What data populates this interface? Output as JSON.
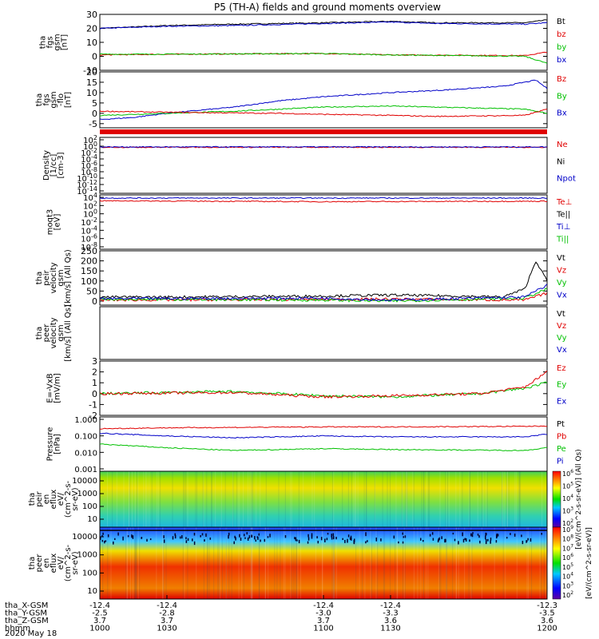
{
  "title": "P5 (TH-A) fields and ground moments overview",
  "date_label": "2020 May 18",
  "colors": {
    "black": "#000000",
    "red": "#e00000",
    "green": "#00c000",
    "blue": "#0000c8"
  },
  "chart_data": [
    {
      "type": "line",
      "name": "fgs",
      "ylabel": [
        "tha",
        "fgs",
        "gsm",
        "[nT]"
      ],
      "ylim": [
        -10,
        30
      ],
      "yticks": [
        -10,
        0,
        10,
        20,
        30
      ],
      "legend": [
        {
          "label": "Bt",
          "color": "black"
        },
        {
          "label": "bz",
          "color": "red"
        },
        {
          "label": "by",
          "color": "green"
        },
        {
          "label": "bx",
          "color": "blue"
        }
      ],
      "series": [
        {
          "name": "Bt",
          "color": "black",
          "x": [
            1000,
            1030,
            1060,
            1100,
            1130,
            1150,
            1190,
            1200
          ],
          "y": [
            20,
            22,
            23,
            24,
            25,
            24,
            24,
            26
          ]
        },
        {
          "name": "Bt-blue",
          "color": "blue",
          "x": [
            1000,
            1030,
            1060,
            1100,
            1130,
            1150,
            1190,
            1200
          ],
          "y": [
            20,
            21.5,
            22,
            23.5,
            24.5,
            23.5,
            23,
            24
          ]
        },
        {
          "name": "bz",
          "color": "red",
          "x": [
            1000,
            1030,
            1100,
            1130,
            1190,
            1200
          ],
          "y": [
            1,
            1.5,
            2,
            1,
            0.5,
            3
          ]
        },
        {
          "name": "by",
          "color": "green",
          "x": [
            1000,
            1030,
            1100,
            1130,
            1190,
            1200
          ],
          "y": [
            1.5,
            1.5,
            2,
            1,
            0,
            -5
          ]
        }
      ]
    },
    {
      "type": "line",
      "name": "fgs-gsm",
      "ylabel": [
        "tha",
        "fgs",
        "gsm",
        "-flo",
        "[nT]"
      ],
      "ylim": [
        -7,
        20
      ],
      "yticks": [
        -5,
        0,
        5,
        10,
        15,
        20
      ],
      "legend": [
        {
          "label": "Bz",
          "color": "red"
        },
        {
          "label": "By",
          "color": "green"
        },
        {
          "label": "Bx",
          "color": "blue"
        }
      ],
      "series": [
        {
          "name": "Bx",
          "color": "blue",
          "x": [
            1000,
            1015,
            1030,
            1060,
            1080,
            1100,
            1130,
            1150,
            1180,
            1195,
            1200
          ],
          "y": [
            -3,
            -2,
            0,
            3,
            6,
            8,
            10,
            11,
            13,
            16,
            12
          ]
        },
        {
          "name": "By",
          "color": "green",
          "x": [
            1000,
            1030,
            1060,
            1080,
            1100,
            1130,
            1150,
            1190,
            1200
          ],
          "y": [
            -1,
            0,
            1,
            2,
            3,
            3.5,
            3,
            2,
            0
          ]
        },
        {
          "name": "Bz",
          "color": "red",
          "x": [
            1000,
            1030,
            1080,
            1100,
            1130,
            1150,
            1190,
            1200
          ],
          "y": [
            1,
            0.5,
            0,
            -0.5,
            -1,
            -1.5,
            -1,
            2
          ]
        }
      ]
    },
    {
      "type": "line",
      "name": "density",
      "ylabel": [
        "Density",
        "[1/cc]",
        "[cm-3]"
      ],
      "log": true,
      "ylim": [
        -14,
        3
      ],
      "yticks_labels": [
        "10^2",
        "10^0",
        "10^-2",
        "10^-4",
        "10^-6",
        "10^-8",
        "10^-10",
        "10^-12",
        "10^-14"
      ],
      "legend": [
        {
          "label": "Ne",
          "color": "red"
        },
        {
          "label": "Ni",
          "color": "black"
        },
        {
          "label": "Npot",
          "color": "blue"
        }
      ],
      "series": [
        {
          "name": "Ne",
          "color": "red",
          "x": [
            1000,
            1200
          ],
          "y": [
            0,
            0
          ]
        },
        {
          "name": "Npot",
          "color": "blue",
          "x": [
            1000,
            1200
          ],
          "y": [
            0.1,
            0.1
          ]
        }
      ]
    },
    {
      "type": "line",
      "name": "temperature",
      "ylabel": [
        "moqt3",
        "[eV]"
      ],
      "log": true,
      "ylim": [
        -8,
        4
      ],
      "yticks_labels": [
        "10^4",
        "10^2",
        "10^0",
        "10^-2",
        "10^-4",
        "10^-6",
        "10^-8"
      ],
      "legend": [
        {
          "label": "Te⊥",
          "color": "red"
        },
        {
          "label": "Te||",
          "color": "black"
        },
        {
          "label": "Ti⊥",
          "color": "blue"
        },
        {
          "label": "Ti||",
          "color": "green"
        }
      ],
      "series": [
        {
          "name": "Ti",
          "color": "blue",
          "x": [
            1000,
            1200
          ],
          "y": [
            3.3,
            3.3
          ]
        },
        {
          "name": "Te",
          "color": "red",
          "x": [
            1000,
            1100,
            1200
          ],
          "y": [
            2.7,
            2.5,
            2.6
          ]
        }
      ]
    },
    {
      "type": "line",
      "name": "peir-velocity",
      "ylabel": [
        "tha",
        "peir",
        "velocity",
        "gsm",
        "[km/s] (All Qs)"
      ],
      "ylim": [
        -20,
        250
      ],
      "yticks": [
        0,
        50,
        100,
        150,
        200,
        250
      ],
      "legend": [
        {
          "label": "Vt",
          "color": "black"
        },
        {
          "label": "Vz",
          "color": "red"
        },
        {
          "label": "Vy",
          "color": "green"
        },
        {
          "label": "Vx",
          "color": "blue"
        }
      ],
      "series": [
        {
          "name": "Vt",
          "color": "black",
          "x": [
            1000,
            1030,
            1100,
            1130,
            1160,
            1180,
            1190,
            1195,
            1200
          ],
          "y": [
            20,
            20,
            25,
            30,
            25,
            20,
            60,
            200,
            100
          ]
        },
        {
          "name": "Vz",
          "color": "red",
          "x": [
            1000,
            1100,
            1130,
            1190,
            1200
          ],
          "y": [
            5,
            8,
            10,
            5,
            40
          ]
        },
        {
          "name": "Vy",
          "color": "green",
          "x": [
            1000,
            1100,
            1130,
            1190,
            1200
          ],
          "y": [
            10,
            5,
            0,
            15,
            60
          ]
        },
        {
          "name": "Vx",
          "color": "blue",
          "x": [
            1000,
            1100,
            1130,
            1190,
            1200
          ],
          "y": [
            12,
            15,
            5,
            20,
            80
          ]
        }
      ]
    },
    {
      "type": "line",
      "name": "peer-velocity",
      "ylabel": [
        "tha",
        "peer",
        "velocity",
        "gsm",
        "[km/s] (All Qs)"
      ],
      "legend": [
        {
          "label": "Vt",
          "color": "black"
        },
        {
          "label": "Vz",
          "color": "red"
        },
        {
          "label": "Vy",
          "color": "green"
        },
        {
          "label": "Vx",
          "color": "blue"
        }
      ],
      "series": []
    },
    {
      "type": "line",
      "name": "efield",
      "ylabel": [
        "E=-VxB",
        "[mV/m]"
      ],
      "ylim": [
        -2,
        3
      ],
      "yticks": [
        -2,
        -1,
        0,
        1,
        2,
        3
      ],
      "legend": [
        {
          "label": "Ez",
          "color": "red"
        },
        {
          "label": "Ey",
          "color": "green"
        },
        {
          "label": "Ex",
          "color": "blue"
        }
      ],
      "series": [
        {
          "name": "Ey",
          "color": "green",
          "x": [
            1000,
            1060,
            1100,
            1130,
            1170,
            1190,
            1200
          ],
          "y": [
            0,
            0.2,
            -0.2,
            -0.3,
            0,
            0.5,
            1
          ]
        },
        {
          "name": "Ez",
          "color": "red",
          "x": [
            1000,
            1060,
            1100,
            1130,
            1170,
            1190,
            1200
          ],
          "y": [
            0,
            0.1,
            -0.3,
            -0.2,
            0,
            0.6,
            2
          ]
        }
      ]
    },
    {
      "type": "line",
      "name": "pressure",
      "ylabel": [
        "Pressure",
        "[nPa]"
      ],
      "log": true,
      "ylim": [
        -3,
        0
      ],
      "yticks_labels": [
        "1.000",
        "0.100",
        "0.010",
        "0.001"
      ],
      "legend": [
        {
          "label": "Pt",
          "color": "black"
        },
        {
          "label": "Pb",
          "color": "red"
        },
        {
          "label": "Pe",
          "color": "green"
        },
        {
          "label": "Pi",
          "color": "blue"
        }
      ],
      "series": [
        {
          "name": "Pb",
          "color": "red",
          "x": [
            1000,
            1030,
            1100,
            1130,
            1190,
            1200
          ],
          "y": [
            -0.65,
            -0.6,
            -0.55,
            -0.55,
            -0.52,
            -0.5
          ]
        },
        {
          "name": "Pi",
          "color": "blue",
          "x": [
            1000,
            1030,
            1060,
            1100,
            1130,
            1190,
            1200
          ],
          "y": [
            -0.9,
            -1.05,
            -1.15,
            -1.05,
            -1.1,
            -1.1,
            -0.95
          ]
        },
        {
          "name": "Pe",
          "color": "green",
          "x": [
            1000,
            1030,
            1060,
            1100,
            1130,
            1190,
            1200
          ],
          "y": [
            -1.5,
            -1.7,
            -1.85,
            -1.75,
            -1.8,
            -1.85,
            -1.7
          ]
        }
      ]
    },
    {
      "type": "heatmap",
      "name": "peir-eflux",
      "ylabel": [
        "tha",
        "peir",
        "en",
        "eflux",
        "eV/",
        "(cm^2-s-",
        "sr-eV)"
      ],
      "yticks_labels": [
        "10000",
        "1000",
        "100",
        "10"
      ],
      "colorbar_label": "[eV/(cm^2-s-sr-eV)] (All Qs)",
      "colorbar_ticks": [
        "10^6",
        "10^5",
        "10^4",
        "10^3",
        "10^2"
      ]
    },
    {
      "type": "heatmap",
      "name": "peer-eflux",
      "ylabel": [
        "tha",
        "peer",
        "en",
        "eflux",
        "eV/",
        "(cm^2-s-",
        "sr-eV)"
      ],
      "yticks_labels": [
        "10000",
        "1000",
        "100",
        "10"
      ],
      "colorbar_label": "[eV/(cm^2-s-sr-eV)]",
      "colorbar_ticks": [
        "10^9",
        "10^8",
        "10^7",
        "10^6",
        "10^5",
        "10^4",
        "10^3",
        "10^2"
      ]
    }
  ],
  "x_axis": {
    "xlim": [
      1000,
      1200
    ],
    "tick_values": [
      1000,
      1030,
      1100,
      1130,
      1200
    ],
    "rows": [
      {
        "label": "tha_X-GSM",
        "values": [
          "-12.4",
          "-12.4",
          "-12.4",
          "-12.4",
          "-12.3"
        ]
      },
      {
        "label": "tha_Y-GSM",
        "values": [
          "-2.5",
          "-2.8",
          "-3.0",
          "-3.3",
          "-3.5"
        ]
      },
      {
        "label": "tha_Z-GSM",
        "values": [
          "3.7",
          "3.7",
          "3.7",
          "3.6",
          "3.6"
        ]
      },
      {
        "label": "hhmm",
        "values": [
          "1000",
          "1030",
          "1100",
          "1130",
          "1200"
        ]
      }
    ]
  }
}
